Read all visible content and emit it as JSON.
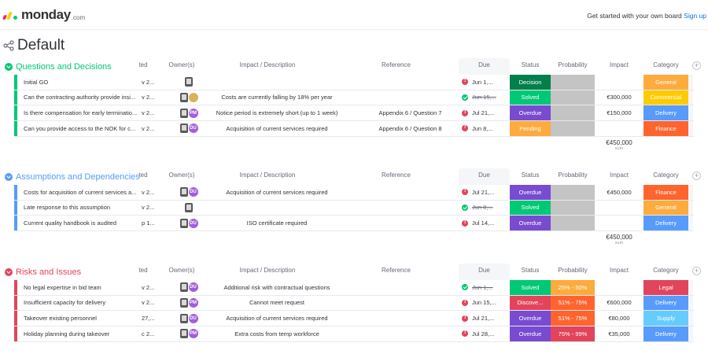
{
  "header": {
    "logo_text": "monday",
    "logo_suffix": ".com",
    "cta_text": "Get started with your own board",
    "cta_link": "Sign up"
  },
  "board": {
    "title": "Default"
  },
  "columns": {
    "created": "ted",
    "owners": "Owner(s)",
    "impact_description": "Impact / Description",
    "reference": "Reference",
    "due": "Due",
    "status": "Status",
    "probability": "Probability",
    "impact": "Impact",
    "category": "Category"
  },
  "colors": {
    "blue": "#579bfc",
    "green": "#00c875",
    "red": "#e2445c",
    "orange": "#fdab3d",
    "purple": "#784bd1",
    "darkgreen": "#037f4c",
    "grey": "#c4c4c4",
    "yellow": "#ffcb00",
    "sky": "#66ccff",
    "pink": "#ff5ac4"
  },
  "groups": [
    {
      "title": "Questions and Decisions",
      "color": "#00c875",
      "sum": "€450,000",
      "sum_label": "sum",
      "rows": [
        {
          "item": "Initial GO",
          "created": "v 2...",
          "owners": "a",
          "desc": "",
          "ref": "",
          "due": "Jun 1,...",
          "due_state": "red",
          "status": "Decision",
          "status_color": "#037f4c",
          "prob": "",
          "prob_color": "#c4c4c4",
          "impact": "",
          "cat": "General",
          "cat_color": "#fdab3d"
        },
        {
          "item": "Can the contracting authority provide insi...",
          "created": "v 2...",
          "owners": "b",
          "desc": "Costs are currently falling by 18% per year",
          "ref": "",
          "due": "Jun 15,...",
          "due_state": "green",
          "status": "Solved",
          "status_color": "#00c875",
          "prob": "",
          "prob_color": "#c4c4c4",
          "impact": "€300,000",
          "cat": "Commercial",
          "cat_color": "#ffcb00"
        },
        {
          "item": "Is there compensation for early terminatio...",
          "created": "v 2...",
          "owners": "c",
          "owner_initials": "PM",
          "desc": "Notice period is extremely short (up to 1 week)",
          "ref": "Appendix 6 / Question 7",
          "due": "Jul 21,...",
          "due_state": "red",
          "status": "Overdue",
          "status_color": "#784bd1",
          "prob": "",
          "prob_color": "#c4c4c4",
          "impact": "€150,000",
          "cat": "Delivery",
          "cat_color": "#579bfc"
        },
        {
          "item": "Can you provide access to the NOK for c...",
          "created": "v 2...",
          "owners": "c",
          "owner_initials": "DU",
          "desc": "Acquisition of current services required",
          "ref": "Appendix 6 / Question 8",
          "due": "Jun 8,...",
          "due_state": "red",
          "status": "Pending",
          "status_color": "#fdab3d",
          "prob": "",
          "prob_color": "#c4c4c4",
          "impact": "",
          "cat": "Finance",
          "cat_color": "#ff642e"
        }
      ]
    },
    {
      "title": "Assumptions and Dependencies",
      "color": "#579bfc",
      "sum": "€450,000",
      "sum_label": "sum",
      "rows": [
        {
          "item": "Costs for acquisition of current services a...",
          "created": "v 2...",
          "owners": "c",
          "owner_initials": "DU",
          "desc": "Acquisition of current services required",
          "ref": "",
          "due": "Jul 21,...",
          "due_state": "red",
          "status": "Overdue",
          "status_color": "#784bd1",
          "prob": "",
          "prob_color": "#c4c4c4",
          "impact": "€450,000",
          "cat": "Finance",
          "cat_color": "#ff642e"
        },
        {
          "item": "Late response to this assumption",
          "created": "v 2...",
          "owners": "a",
          "desc": "",
          "ref": "",
          "due": "Jun 8,...",
          "due_state": "green",
          "status": "Solved",
          "status_color": "#00c875",
          "prob": "",
          "prob_color": "#c4c4c4",
          "impact": "",
          "cat": "General",
          "cat_color": "#fdab3d"
        },
        {
          "item": "Current quality handbook is audited",
          "created": "p 1...",
          "owners": "c",
          "owner_initials": "DU",
          "desc": "ISO certificate required",
          "ref": "",
          "due": "Jul 14,...",
          "due_state": "red",
          "status": "Overdue",
          "status_color": "#784bd1",
          "prob": "",
          "prob_color": "#c4c4c4",
          "impact": "",
          "cat": "Delivery",
          "cat_color": "#579bfc"
        }
      ]
    },
    {
      "title": "Risks and Issues",
      "color": "#e2445c",
      "rows": [
        {
          "item": "No legal expertise in bid team",
          "created": "v 2...",
          "owners": "c",
          "owner_initials": "DU",
          "desc": "Additional risk with contractual questions",
          "ref": "",
          "due": "Jun 1,...",
          "due_state": "green",
          "status": "Solved",
          "status_color": "#00c875",
          "prob": "25% - 50%",
          "prob_color": "#fdab3d",
          "impact": "",
          "cat": "Legal",
          "cat_color": "#e2445c"
        },
        {
          "item": "Insufficient capacity for delivery",
          "created": "v 2...",
          "owners": "c",
          "owner_initials": "PM",
          "desc": "Cannot meet request",
          "ref": "",
          "due": "Jun 15,...",
          "due_state": "red",
          "status": "Discove...",
          "status_color": "#e2445c",
          "prob": "51% - 75%",
          "prob_color": "#ff642e",
          "impact": "€600,000",
          "cat": "Delivery",
          "cat_color": "#579bfc"
        },
        {
          "item": "Takeover existing personnel",
          "created": "27,...",
          "owners": "c",
          "owner_initials": "DU",
          "desc": "Acquisition of current services required",
          "ref": "",
          "due": "Jul 21,...",
          "due_state": "red",
          "status": "Overdue",
          "status_color": "#784bd1",
          "prob": "51% - 75%",
          "prob_color": "#ff642e",
          "impact": "€80,000",
          "cat": "Supply",
          "cat_color": "#66ccff"
        },
        {
          "item": "Holiday planning during takeover",
          "created": "c 2...",
          "owners": "c",
          "owner_initials": "PM",
          "desc": "Extra costs from temp workforce",
          "ref": "",
          "due": "Jul 28,...",
          "due_state": "red",
          "status": "Overdue",
          "status_color": "#784bd1",
          "prob": "75% - 99%",
          "prob_color": "#e2445c",
          "impact": "€35,000",
          "cat": "Delivery",
          "cat_color": "#579bfc"
        }
      ]
    }
  ]
}
